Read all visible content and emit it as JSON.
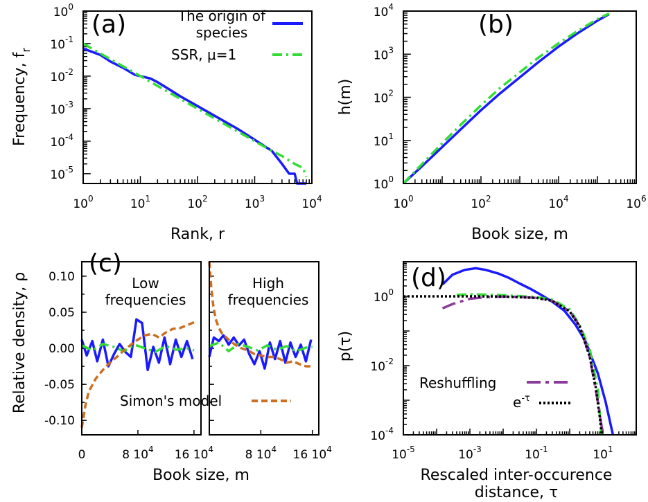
{
  "colors": {
    "blue": "#1a1aff",
    "green": "#33dd33",
    "orange": "#cc6f22",
    "purple": "#8b3a9c",
    "black": "#000000"
  },
  "chart_data": [
    {
      "panel": "a",
      "panel_label": "(a)",
      "type": "line",
      "xlabel": "Rank, r",
      "ylabel": "Frequency, f",
      "ylabel_sub": "r",
      "x_scale": "log",
      "y_scale": "log",
      "xlim": [
        1,
        10000
      ],
      "ylim": [
        5e-06,
        1
      ],
      "x_ticks": [
        {
          "base": "10",
          "exp": "0",
          "v": 1
        },
        {
          "base": "10",
          "exp": "1",
          "v": 10
        },
        {
          "base": "10",
          "exp": "2",
          "v": 100
        },
        {
          "base": "10",
          "exp": "3",
          "v": 1000
        },
        {
          "base": "10",
          "exp": "4",
          "v": 10000
        }
      ],
      "y_ticks": [
        {
          "base": "10",
          "exp": "0",
          "v": 1
        },
        {
          "base": "10",
          "exp": "-1",
          "v": 0.1
        },
        {
          "base": "10",
          "exp": "-2",
          "v": 0.01
        },
        {
          "base": "10",
          "exp": "-3",
          "v": 0.001
        },
        {
          "base": "10",
          "exp": "-4",
          "v": 0.0001
        },
        {
          "base": "10",
          "exp": "-5",
          "v": 1e-05
        }
      ],
      "legend": [
        {
          "line1": "The origin of",
          "line2": "species",
          "color": "blue",
          "dash": "solid"
        },
        {
          "line1": "SSR, μ=1",
          "line2": "",
          "color": "green",
          "dash": "dashdot"
        }
      ],
      "series": [
        {
          "name": "The origin of species",
          "color": "blue",
          "dash": "solid",
          "x": [
            1,
            2,
            3,
            5,
            8,
            10,
            15,
            20,
            30,
            50,
            100,
            200,
            500,
            1000,
            2000,
            3000,
            4000,
            5000,
            5500,
            6000,
            8000
          ],
          "y": [
            0.07,
            0.045,
            0.028,
            0.018,
            0.011,
            0.01,
            0.0085,
            0.0065,
            0.0042,
            0.0024,
            0.0012,
            0.0006,
            0.00024,
            0.00011,
            5e-05,
            2e-05,
            1e-05,
            1e-05,
            5e-06,
            5e-06,
            5e-06
          ]
        },
        {
          "name": "SSR, μ=1",
          "color": "green",
          "dash": "dashdot",
          "x": [
            1,
            2,
            3,
            5,
            10,
            20,
            50,
            100,
            200,
            500,
            1000,
            2000,
            3000,
            5000,
            7000,
            8000
          ],
          "y": [
            0.1,
            0.05,
            0.033,
            0.02,
            0.01,
            0.005,
            0.002,
            0.001,
            0.0005,
            0.0002,
            0.0001,
            5e-05,
            3.5e-05,
            2e-05,
            1.5e-05,
            8e-06
          ]
        }
      ]
    },
    {
      "panel": "b",
      "panel_label": "(b)",
      "type": "line",
      "xlabel": "Book size, m",
      "ylabel": "h(m)",
      "x_scale": "log",
      "y_scale": "log",
      "xlim": [
        1,
        1000000
      ],
      "ylim": [
        1,
        10000
      ],
      "x_ticks": [
        {
          "base": "10",
          "exp": "0",
          "v": 1
        },
        {
          "base": "10",
          "exp": "2",
          "v": 100
        },
        {
          "base": "10",
          "exp": "4",
          "v": 10000
        },
        {
          "base": "10",
          "exp": "6",
          "v": 1000000
        }
      ],
      "y_ticks": [
        {
          "base": "10",
          "exp": "0",
          "v": 1
        },
        {
          "base": "10",
          "exp": "1",
          "v": 10
        },
        {
          "base": "10",
          "exp": "2",
          "v": 100
        },
        {
          "base": "10",
          "exp": "3",
          "v": 1000
        },
        {
          "base": "10",
          "exp": "4",
          "v": 10000
        }
      ],
      "series": [
        {
          "name": "The origin of species",
          "color": "blue",
          "dash": "solid",
          "x": [
            1,
            3,
            10,
            30,
            100,
            300,
            1000,
            3000,
            10000,
            30000,
            100000,
            200000
          ],
          "y": [
            1,
            2.5,
            7,
            18,
            50,
            120,
            290,
            650,
            1500,
            3000,
            6000,
            8500
          ]
        },
        {
          "name": "SSR, μ=1",
          "color": "green",
          "dash": "dashdot",
          "x": [
            1,
            3,
            10,
            30,
            100,
            300,
            1000,
            3000,
            10000,
            30000,
            100000,
            200000
          ],
          "y": [
            1,
            2.8,
            8.5,
            23,
            65,
            160,
            380,
            830,
            1800,
            3400,
            6500,
            8800
          ]
        }
      ]
    },
    {
      "panel": "c",
      "panel_label": "(c)",
      "type": "line",
      "xlabel": "Book size, m",
      "ylabel": "Relative density, ρ",
      "ylim": [
        -0.12,
        0.12
      ],
      "y_ticks": [
        "0.10",
        "0.05",
        "0.00",
        "-0.05",
        "-0.10"
      ],
      "y_tick_values": [
        0.1,
        0.05,
        0,
        -0.05,
        -0.1
      ],
      "xlim": [
        0,
        170000
      ],
      "x_tick_values": [
        0,
        80000,
        160000
      ],
      "x_ticks_left": [
        "0",
        "8 10",
        "16 10"
      ],
      "x_ticks_right": [
        "",
        "8 10",
        "16 10"
      ],
      "x_tick_exp": "4",
      "sub_titles": [
        {
          "line1": "Low",
          "line2": "frequencies"
        },
        {
          "line1": "High",
          "line2": "frequencies"
        }
      ],
      "annotation": "Simon's model",
      "low": [
        {
          "name": "The origin of species",
          "color": "blue",
          "dash": "solid",
          "x": [
            0,
            7000,
            15000,
            22000,
            30000,
            38000,
            46000,
            54000,
            62000,
            70000,
            78000,
            86000,
            94000,
            102000,
            110000,
            118000,
            126000,
            134000,
            142000,
            150000,
            158000
          ],
          "y": [
            0.012,
            -0.01,
            0.01,
            -0.018,
            0.012,
            -0.025,
            -0.008,
            0.006,
            -0.005,
            -0.012,
            0.04,
            0.035,
            -0.03,
            0.002,
            -0.02,
            0.015,
            -0.022,
            0.012,
            -0.012,
            0.01,
            -0.015
          ]
        },
        {
          "name": "SSR, μ=1",
          "color": "green",
          "dash": "dashdot",
          "x": [
            0,
            15000,
            30000,
            45000,
            60000,
            75000,
            90000,
            105000,
            120000,
            135000,
            150000,
            160000
          ],
          "y": [
            0.004,
            -0.003,
            0.006,
            0.002,
            -0.004,
            0.005,
            0.0,
            -0.005,
            0.003,
            -0.002,
            0.0,
            -0.003
          ]
        },
        {
          "name": "Simon's model",
          "color": "orange",
          "dash": "dashed",
          "x": [
            0,
            5000,
            10000,
            20000,
            30000,
            40000,
            50000,
            60000,
            70000,
            80000,
            90000,
            100000,
            110000,
            120000,
            130000,
            140000,
            150000,
            160000
          ],
          "y": [
            -0.11,
            -0.08,
            -0.06,
            -0.042,
            -0.03,
            -0.02,
            -0.012,
            -0.003,
            0.005,
            0.012,
            0.018,
            0.02,
            0.015,
            0.022,
            0.027,
            0.028,
            0.032,
            0.036
          ]
        }
      ],
      "high": [
        {
          "name": "The origin of species",
          "color": "blue",
          "dash": "solid",
          "x": [
            0,
            7000,
            15000,
            22000,
            30000,
            38000,
            46000,
            54000,
            62000,
            70000,
            78000,
            86000,
            94000,
            102000,
            110000,
            118000,
            126000,
            134000,
            142000,
            150000,
            158000
          ],
          "y": [
            -0.012,
            0.015,
            0.01,
            0.018,
            0.005,
            0.015,
            0.004,
            0.012,
            -0.008,
            -0.022,
            -0.004,
            -0.028,
            0.008,
            -0.015,
            0.01,
            -0.02,
            0.008,
            -0.012,
            0.005,
            -0.018,
            0.012
          ]
        },
        {
          "name": "SSR, μ=1",
          "color": "green",
          "dash": "dashdot",
          "x": [
            0,
            15000,
            30000,
            45000,
            60000,
            75000,
            90000,
            105000,
            120000,
            135000,
            150000,
            160000
          ],
          "y": [
            0.003,
            0.008,
            -0.004,
            0.006,
            0.002,
            -0.003,
            0.004,
            -0.002,
            0.003,
            -0.004,
            0.001,
            0.002
          ]
        },
        {
          "name": "Simon's model",
          "color": "orange",
          "dash": "dashed",
          "x": [
            0,
            3000,
            6000,
            10000,
            15000,
            20000,
            30000,
            40000,
            50000,
            60000,
            70000,
            80000,
            90000,
            100000,
            110000,
            120000,
            130000,
            140000,
            150000,
            160000
          ],
          "y": [
            0.12,
            0.085,
            0.06,
            0.04,
            0.028,
            0.02,
            0.012,
            0.005,
            0.0,
            -0.003,
            -0.008,
            -0.01,
            -0.012,
            -0.012,
            -0.015,
            -0.02,
            -0.018,
            -0.022,
            -0.025,
            -0.025
          ]
        }
      ]
    },
    {
      "panel": "d",
      "panel_label": "(d)",
      "type": "line",
      "xlabel_line1": "Rescaled inter-occurence",
      "xlabel_line2": "distance, τ",
      "ylabel": "p(τ)",
      "x_scale": "log",
      "y_scale": "log",
      "xlim": [
        1e-05,
        100
      ],
      "ylim": [
        0.0001,
        10
      ],
      "x_ticks": [
        {
          "base": "10",
          "exp": "-5",
          "v": 1e-05
        },
        {
          "base": "10",
          "exp": "-3",
          "v": 0.001
        },
        {
          "base": "10",
          "exp": "-1",
          "v": 0.1
        },
        {
          "base": "10",
          "exp": "1",
          "v": 10
        }
      ],
      "y_ticks": [
        {
          "base": "10",
          "exp": "0",
          "v": 1
        },
        {
          "base": "10",
          "exp": "-2",
          "v": 0.01
        },
        {
          "base": "10",
          "exp": "-4",
          "v": 0.0001
        }
      ],
      "legend": [
        {
          "label": "Reshuffling",
          "color": "purple",
          "dash": "longdash"
        },
        {
          "label": "e",
          "label_sup": "-τ",
          "color": "black",
          "dash": "dotted"
        }
      ],
      "series": [
        {
          "name": "The origin of species",
          "color": "blue",
          "dash": "solid",
          "x": [
            0.00015,
            0.0003,
            0.0007,
            0.0015,
            0.003,
            0.007,
            0.015,
            0.03,
            0.07,
            0.15,
            0.3,
            0.7,
            1.5,
            3,
            7,
            12,
            20
          ],
          "y": [
            2.2,
            4.2,
            5.8,
            6.5,
            5.8,
            4.6,
            3.4,
            2.4,
            1.6,
            1.05,
            0.7,
            0.38,
            0.15,
            0.05,
            0.006,
            0.0009,
            0.0001
          ]
        },
        {
          "name": "SSR, μ=1",
          "color": "green",
          "dash": "dashdot",
          "x": [
            0.0004,
            0.001,
            0.003,
            0.01,
            0.03,
            0.1,
            0.3,
            1,
            2,
            4,
            7,
            9
          ],
          "y": [
            1.1,
            1.15,
            1.12,
            1.08,
            1.02,
            0.95,
            0.8,
            0.42,
            0.15,
            0.03,
            0.002,
            0.0001
          ]
        },
        {
          "name": "Reshuffling",
          "color": "purple",
          "dash": "longdash",
          "x": [
            0.00015,
            0.0003,
            0.001,
            0.003,
            0.01,
            0.03,
            0.1,
            0.3,
            1,
            2,
            4,
            7,
            10
          ],
          "y": [
            0.45,
            0.6,
            0.85,
            0.95,
            0.98,
            0.97,
            0.9,
            0.74,
            0.37,
            0.14,
            0.018,
            0.0009,
            0.0001
          ]
        },
        {
          "name": "e^-τ",
          "color": "black",
          "dash": "dotted",
          "x": [
            1e-05,
            0.0001,
            0.001,
            0.01,
            0.1,
            0.3,
            1,
            2,
            4,
            6,
            8,
            9.2
          ],
          "y": [
            1,
            1,
            0.999,
            0.99,
            0.905,
            0.74,
            0.368,
            0.135,
            0.018,
            0.0025,
            0.00034,
            0.0001
          ]
        }
      ]
    }
  ]
}
